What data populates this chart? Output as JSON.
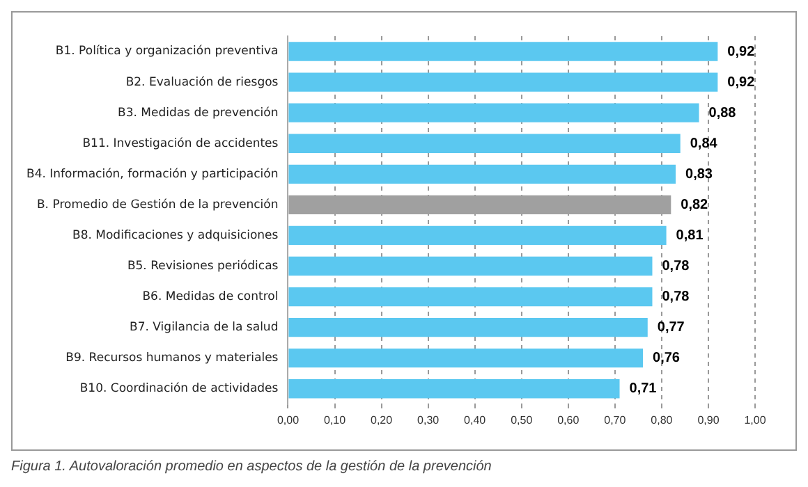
{
  "chart_data": {
    "type": "bar",
    "orientation": "horizontal",
    "categories": [
      "B1. Política y organización preventiva",
      "B2. Evaluación de riesgos",
      "B3. Medidas de prevención",
      "B11. Investigación de accidentes",
      "B4. Información, formación y participación",
      "B. Promedio de Gestión de la prevención",
      "B8. Modificaciones y adquisiciones",
      "B5. Revisiones periódicas",
      "B6. Medidas de control",
      "B7. Vigilancia de la salud",
      "B9. Recursos humanos y materiales",
      "B10. Coordinación de actividades"
    ],
    "values": [
      0.92,
      0.92,
      0.88,
      0.84,
      0.83,
      0.82,
      0.81,
      0.78,
      0.78,
      0.77,
      0.76,
      0.71
    ],
    "value_labels": [
      "0,92",
      "0,92",
      "0,88",
      "0,84",
      "0,83",
      "0,82",
      "0,81",
      "0,78",
      "0,78",
      "0,77",
      "0,76",
      "0,71"
    ],
    "colors": [
      "#5bc8f0",
      "#5bc8f0",
      "#5bc8f0",
      "#5bc8f0",
      "#5bc8f0",
      "#a0a0a0",
      "#5bc8f0",
      "#5bc8f0",
      "#5bc8f0",
      "#5bc8f0",
      "#5bc8f0",
      "#5bc8f0"
    ],
    "xlim": [
      0,
      1
    ],
    "xticks": [
      {
        "value": 0,
        "label": "0,00"
      },
      {
        "value": 0.1,
        "label": "0,10"
      },
      {
        "value": 0.2,
        "label": "0,20"
      },
      {
        "value": 0.3,
        "label": "0,30"
      },
      {
        "value": 0.4,
        "label": "0,40"
      },
      {
        "value": 0.5,
        "label": "0,50"
      },
      {
        "value": 0.6,
        "label": "0,60"
      },
      {
        "value": 0.7,
        "label": "0,70"
      },
      {
        "value": 0.8,
        "label": "0,80"
      },
      {
        "value": 0.9,
        "label": "0,90"
      },
      {
        "value": 1,
        "label": "1,00"
      }
    ],
    "grid": "x",
    "legend": false,
    "annotations": [
      "Figura 1. Autovaloración promedio en aspectos de la gestión de la prevención"
    ]
  }
}
